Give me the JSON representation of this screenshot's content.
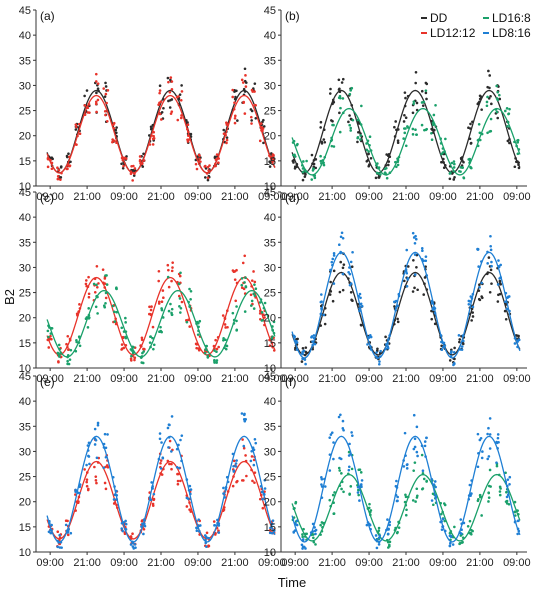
{
  "chart_data": {
    "type": "scatter",
    "ylabel": "B2",
    "xlabel": "Time",
    "ylim": [
      10,
      45
    ],
    "yticks": [
      10,
      15,
      20,
      25,
      30,
      35,
      40,
      45
    ],
    "xticks": [
      {
        "h": 0,
        "label": "09:00"
      },
      {
        "h": 12,
        "label": "21:00"
      },
      {
        "h": 24,
        "label": "09:00"
      },
      {
        "h": 36,
        "label": "21:00"
      },
      {
        "h": 48,
        "label": "09:00"
      },
      {
        "h": 60,
        "label": "21:00"
      },
      {
        "h": 72,
        "label": "09:00"
      }
    ],
    "xlim_hours": [
      -2,
      74
    ],
    "series": [
      {
        "name": "DD",
        "color": "#2b2b2b",
        "mesor": 20.8,
        "amplitude": 8.2,
        "peak_hour": 15
      },
      {
        "name": "LD12:12",
        "color": "#e8332a",
        "mesor": 20.3,
        "amplitude": 7.7,
        "peak_hour": 15
      },
      {
        "name": "LD16:8",
        "color": "#1aa06a",
        "mesor": 18.8,
        "amplitude": 6.6,
        "peak_hour": 17.5
      },
      {
        "name": "LD8:16",
        "color": "#1f7fd4",
        "mesor": 22.5,
        "amplitude": 10.5,
        "peak_hour": 15
      }
    ],
    "panels": [
      {
        "label": "(a)",
        "series": [
          "DD",
          "LD12:12"
        ]
      },
      {
        "label": "(b)",
        "series": [
          "DD",
          "LD16:8"
        ]
      },
      {
        "label": "(c)",
        "series": [
          "LD12:12",
          "LD16:8"
        ]
      },
      {
        "label": "(d)",
        "series": [
          "DD",
          "LD8:16"
        ]
      },
      {
        "label": "(e)",
        "series": [
          "LD12:12",
          "LD8:16"
        ]
      },
      {
        "label": "(f)",
        "series": [
          "LD16:8",
          "LD8:16"
        ]
      }
    ],
    "legend": {
      "placement": "top-right of panel (b)",
      "entries": [
        "DD",
        "LD16:8",
        "LD12:12",
        "LD8:16"
      ]
    }
  }
}
